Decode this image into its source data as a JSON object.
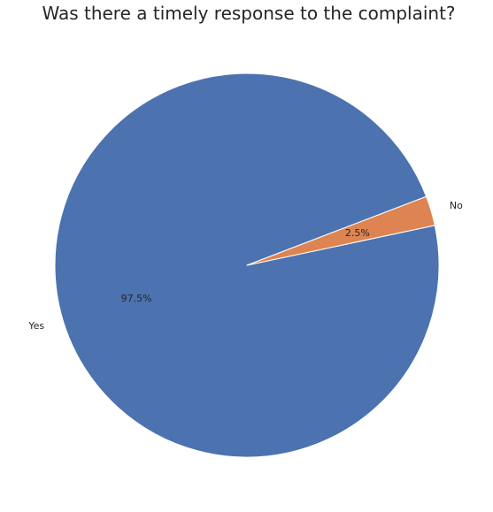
{
  "chart_data": {
    "type": "pie",
    "title": "Was there a timely response to the complaint?",
    "labels": [
      "Yes",
      "No"
    ],
    "values": [
      97.5,
      2.5
    ],
    "percent_labels": [
      "97.5%",
      "2.5%"
    ],
    "colors": [
      "#4c72b0",
      "#dd8452"
    ],
    "start_angle_deg": 21
  }
}
